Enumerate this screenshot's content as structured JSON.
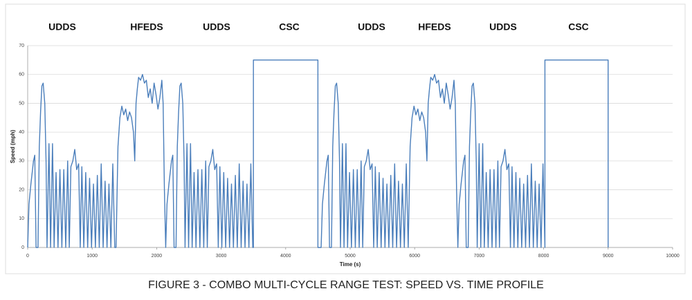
{
  "chart_data": {
    "type": "line",
    "annotations": [
      "UDDS",
      "HFEDS",
      "UDDS",
      "CSC",
      "UDDS",
      "HFEDS",
      "UDDS",
      "CSC"
    ],
    "y_label": "Speed (mph)",
    "x_label": "Time (s)",
    "caption": "FIGURE 3 - COMBO MULTI-CYCLE RANGE TEST: SPEED VS. TIME PROFILE",
    "color": "#4a7ebb",
    "grid": true,
    "xlim": [
      0,
      10000
    ],
    "xticks": [
      0,
      1000,
      2000,
      3000,
      4000,
      5000,
      6000,
      7000,
      8000,
      9000,
      10000
    ],
    "ylim": [
      0,
      70
    ],
    "yticks": [
      0,
      10,
      20,
      30,
      40,
      50,
      60,
      70
    ],
    "x": [
      0,
      20,
      50,
      90,
      110,
      130,
      160,
      180,
      200,
      220,
      240,
      265,
      285,
      300,
      330,
      355,
      385,
      410,
      440,
      470,
      500,
      530,
      560,
      590,
      620,
      645,
      670,
      700,
      730,
      760,
      790,
      815,
      840,
      870,
      900,
      930,
      960,
      990,
      1020,
      1050,
      1080,
      1110,
      1140,
      1170,
      1200,
      1230,
      1260,
      1290,
      1320,
      1350,
      1370,
      1400,
      1430,
      1460,
      1490,
      1520,
      1550,
      1580,
      1610,
      1640,
      1660,
      1680,
      1700,
      1720,
      1750,
      1780,
      1810,
      1840,
      1870,
      1900,
      1930,
      1960,
      1990,
      2020,
      2050,
      2080,
      2100,
      2120,
      2140,
      2140,
      2160,
      2190,
      2230,
      2250,
      2270,
      2300,
      2320,
      2340,
      2360,
      2380,
      2405,
      2425,
      2440,
      2470,
      2495,
      2525,
      2550,
      2580,
      2610,
      2640,
      2670,
      2700,
      2730,
      2760,
      2785,
      2810,
      2840,
      2870,
      2900,
      2930,
      2955,
      2980,
      3010,
      3040,
      3070,
      3100,
      3130,
      3160,
      3190,
      3220,
      3250,
      3280,
      3310,
      3340,
      3370,
      3400,
      3430,
      3460,
      3490,
      3500,
      3500,
      4500,
      4500,
      4550,
      4570,
      4600,
      4640,
      4660,
      4680,
      4710,
      4730,
      4750,
      4770,
      4790,
      4815,
      4835,
      4850,
      4880,
      4905,
      4935,
      4960,
      4990,
      5020,
      5050,
      5080,
      5110,
      5140,
      5170,
      5195,
      5220,
      5250,
      5280,
      5310,
      5340,
      5365,
      5390,
      5420,
      5450,
      5480,
      5510,
      5540,
      5570,
      5600,
      5630,
      5660,
      5690,
      5720,
      5750,
      5780,
      5810,
      5840,
      5870,
      5900,
      5900,
      5930,
      5960,
      5990,
      6020,
      6050,
      6080,
      6110,
      6140,
      6170,
      6190,
      6210,
      6230,
      6250,
      6280,
      6310,
      6340,
      6370,
      6400,
      6430,
      6460,
      6490,
      6520,
      6550,
      6580,
      6610,
      6630,
      6650,
      6670,
      6670,
      6690,
      6720,
      6760,
      6780,
      6800,
      6830,
      6850,
      6870,
      6890,
      6910,
      6935,
      6955,
      6970,
      7000,
      7025,
      7055,
      7080,
      7110,
      7140,
      7170,
      7200,
      7230,
      7260,
      7290,
      7315,
      7340,
      7370,
      7400,
      7430,
      7460,
      7485,
      7510,
      7540,
      7570,
      7600,
      7630,
      7660,
      7690,
      7720,
      7750,
      7780,
      7810,
      7840,
      7870,
      7900,
      7930,
      7960,
      7990,
      8020,
      8020,
      8020,
      9000,
      9000
    ],
    "values": [
      0,
      15,
      22,
      30,
      32,
      0,
      0,
      35,
      47,
      56,
      57,
      50,
      30,
      0,
      36,
      0,
      36,
      0,
      26,
      0,
      27,
      0,
      27,
      0,
      30,
      0,
      28,
      30,
      34,
      27,
      29,
      0,
      28,
      0,
      26,
      0,
      24,
      0,
      22,
      0,
      25,
      0,
      29,
      0,
      23,
      0,
      22,
      0,
      29,
      0,
      0,
      35,
      45,
      49,
      46,
      48,
      44,
      47,
      45,
      40,
      30,
      50,
      55,
      59,
      58,
      60,
      57,
      58,
      52,
      55,
      50,
      57,
      53,
      48,
      52,
      58,
      50,
      20,
      0,
      0,
      15,
      22,
      30,
      32,
      0,
      0,
      35,
      47,
      56,
      57,
      50,
      30,
      0,
      36,
      0,
      36,
      0,
      26,
      0,
      27,
      0,
      27,
      0,
      30,
      0,
      28,
      30,
      34,
      27,
      29,
      0,
      28,
      0,
      26,
      0,
      24,
      0,
      22,
      0,
      25,
      0,
      29,
      0,
      23,
      0,
      22,
      0,
      29,
      0,
      0,
      65,
      65,
      0,
      0,
      15,
      22,
      30,
      32,
      0,
      0,
      35,
      47,
      56,
      57,
      50,
      30,
      0,
      36,
      0,
      36,
      0,
      26,
      0,
      27,
      0,
      27,
      0,
      30,
      0,
      28,
      30,
      34,
      27,
      29,
      0,
      28,
      0,
      26,
      0,
      24,
      0,
      22,
      0,
      25,
      0,
      29,
      0,
      23,
      0,
      22,
      0,
      29,
      0,
      0,
      35,
      45,
      49,
      46,
      48,
      44,
      47,
      45,
      40,
      30,
      50,
      55,
      59,
      58,
      60,
      57,
      58,
      52,
      55,
      50,
      57,
      53,
      48,
      52,
      58,
      50,
      20,
      0,
      0,
      15,
      22,
      30,
      32,
      0,
      0,
      35,
      47,
      56,
      57,
      50,
      30,
      0,
      36,
      0,
      36,
      0,
      26,
      0,
      27,
      0,
      27,
      0,
      30,
      0,
      28,
      30,
      34,
      27,
      29,
      0,
      28,
      0,
      26,
      0,
      24,
      0,
      22,
      0,
      25,
      0,
      29,
      0,
      23,
      0,
      22,
      0,
      29,
      0,
      0,
      65,
      65,
      0
    ]
  }
}
